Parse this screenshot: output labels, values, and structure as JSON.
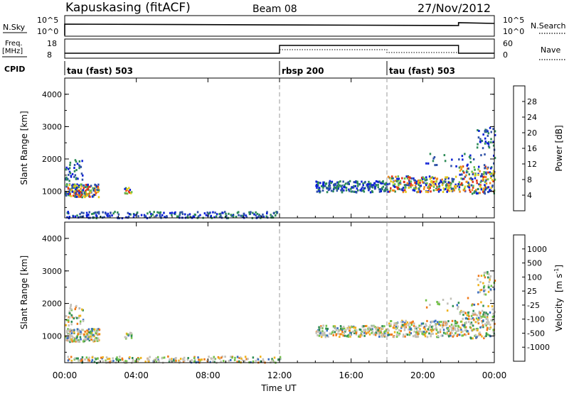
{
  "header": {
    "station": "Kapuskasing (fitACF)",
    "beam": "Beam 08",
    "date": "27/Nov/2012"
  },
  "nsky_panel": {
    "left_label": "N.Sky",
    "right_label": "N.Search",
    "ticks": [
      "10^5",
      "10^0"
    ],
    "right_ticks": [
      "10^5",
      "10^0"
    ]
  },
  "freq_panel": {
    "left_label_line1": "Freq.",
    "left_label_line2": "[MHz]",
    "right_label": "Nave",
    "left_ticks": [
      "18",
      "8"
    ],
    "right_ticks": [
      "60",
      "0"
    ]
  },
  "cpid": {
    "label": "CPID",
    "modes": [
      {
        "name": "tau (fast) 503",
        "start_hour": 0
      },
      {
        "name": "rbsp 200",
        "start_hour": 12
      },
      {
        "name": "tau (fast) 503",
        "start_hour": 18
      }
    ]
  },
  "chart_data": [
    {
      "type": "heatmap",
      "title": "",
      "ylabel": "Slant Range [km]",
      "xlim": [
        0,
        24
      ],
      "ylim": [
        180,
        4500
      ],
      "ytick_labels": [
        "1000",
        "2000",
        "3000",
        "4000"
      ],
      "yticks": [
        1000,
        2000,
        3000,
        4000
      ],
      "colorbar": {
        "label": "Power [dB]",
        "range": [
          0,
          32
        ],
        "tick_labels": [
          "4",
          "8",
          "12",
          "16",
          "20",
          "24",
          "28"
        ],
        "ticks": [
          4,
          8,
          12,
          16,
          20,
          24,
          28
        ],
        "colors": [
          "#0a1fd6",
          "#2f52a8",
          "#2d8b57",
          "#6cc24a",
          "#e6cc1a",
          "#f08a1c",
          "#e03217",
          "#d90000"
        ]
      }
    },
    {
      "type": "heatmap",
      "title": "",
      "ylabel": "Slant Range [km]",
      "xlabel": "Time UT",
      "xlim": [
        0,
        24
      ],
      "ylim": [
        180,
        4500
      ],
      "ytick_labels": [
        "1000",
        "2000",
        "3000",
        "4000"
      ],
      "yticks": [
        1000,
        2000,
        3000,
        4000
      ],
      "x_tick_labels": [
        "00:00",
        "04:00",
        "08:00",
        "12:00",
        "16:00",
        "20:00",
        "00:00"
      ],
      "x_ticks": [
        0,
        4,
        8,
        12,
        16,
        20,
        24
      ],
      "colorbar": {
        "label": "Velocity",
        "unit": "[m s",
        "unit_sup": "-1",
        "unit_end": "]",
        "tick_labels": [
          "1000",
          "500",
          "100",
          "25",
          "-25",
          "-100",
          "-500",
          "-1000"
        ],
        "colors": [
          "#1a3aa8",
          "#3a6ec2",
          "#2e8e52",
          "#72c248",
          "#c2c0b8",
          "#f0b31c",
          "#f07a1a",
          "#e82a1a",
          "#e00000"
        ]
      }
    }
  ]
}
